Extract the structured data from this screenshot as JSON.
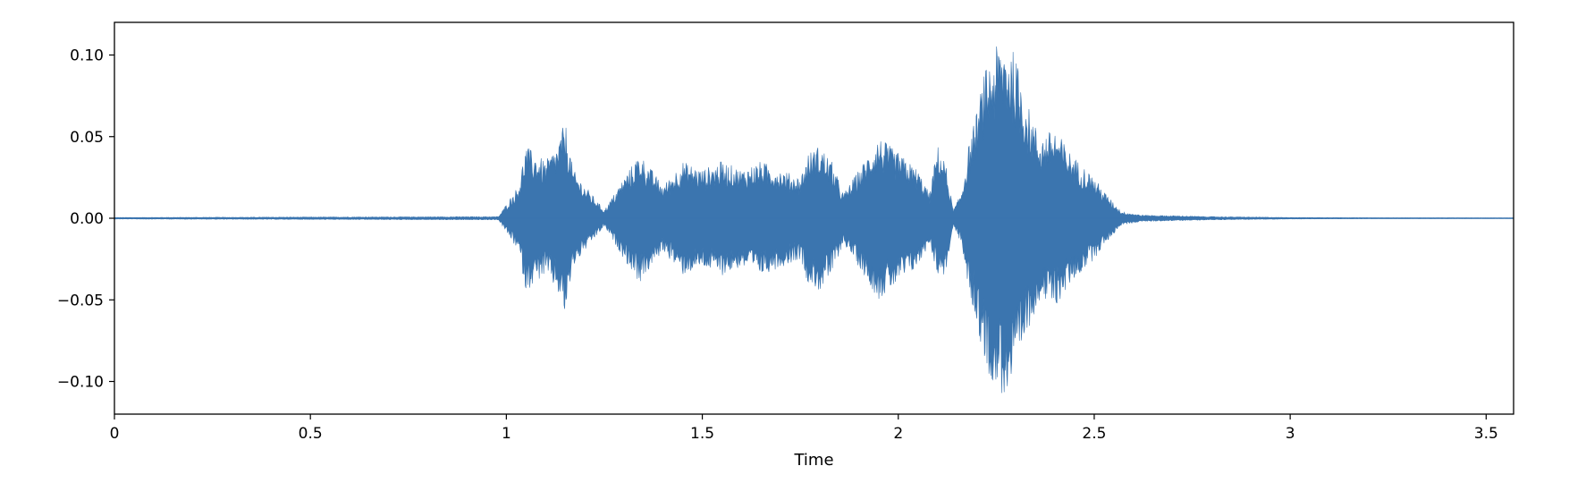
{
  "chart_data": {
    "type": "area",
    "title": "",
    "xlabel": "Time",
    "ylabel": "",
    "xlim": [
      0,
      3.57
    ],
    "ylim": [
      -0.12,
      0.12
    ],
    "x_ticks": [
      0,
      0.5,
      1,
      1.5,
      2,
      2.5,
      3,
      3.5
    ],
    "x_tick_labels": [
      "0",
      "0.5",
      "1",
      "1.5",
      "2",
      "2.5",
      "3",
      "3.5"
    ],
    "y_ticks": [
      0.1,
      0.05,
      0.0,
      -0.05,
      -0.1
    ],
    "y_tick_labels": [
      "0.10",
      "0.05",
      "0.00",
      "−0.05",
      "−0.10"
    ],
    "grid": false,
    "legend": "none",
    "colors": {
      "waveform": "#3b75af",
      "axes": "#000000",
      "background": "#ffffff"
    },
    "series": [
      {
        "envelope": {
          "x": [
            0,
            0.98,
            1.03,
            1.035,
            1.05,
            1.07,
            1.1,
            1.13,
            1.15,
            1.17,
            1.2,
            1.25,
            1.3,
            1.34,
            1.37,
            1.4,
            1.45,
            1.5,
            1.55,
            1.6,
            1.65,
            1.7,
            1.75,
            1.77,
            1.8,
            1.83,
            1.86,
            1.9,
            1.95,
            2.0,
            2.05,
            2.08,
            2.1,
            2.12,
            2.14,
            2.16,
            2.18,
            2.2,
            2.22,
            2.25,
            2.27,
            2.29,
            2.31,
            2.33,
            2.36,
            2.4,
            2.44,
            2.48,
            2.5,
            2.53,
            2.57,
            2.62,
            2.8,
            3.0,
            3.2,
            3.57
          ],
          "upper": [
            0.0005,
            0.001,
            0.02,
            0.025,
            0.045,
            0.04,
            0.035,
            0.045,
            0.06,
            0.03,
            0.02,
            0.005,
            0.025,
            0.04,
            0.03,
            0.02,
            0.035,
            0.03,
            0.035,
            0.03,
            0.035,
            0.03,
            0.025,
            0.04,
            0.045,
            0.035,
            0.015,
            0.03,
            0.05,
            0.04,
            0.03,
            0.015,
            0.045,
            0.035,
            0.005,
            0.015,
            0.045,
            0.065,
            0.09,
            0.105,
            0.11,
            0.105,
            0.09,
            0.07,
            0.05,
            0.055,
            0.04,
            0.03,
            0.025,
            0.015,
            0.004,
            0.002,
            0.001,
            0.0005,
            0.0003,
            0.0002
          ],
          "lower": [
            -0.0005,
            -0.001,
            -0.02,
            -0.025,
            -0.045,
            -0.04,
            -0.035,
            -0.045,
            -0.06,
            -0.03,
            -0.02,
            -0.005,
            -0.025,
            -0.04,
            -0.03,
            -0.02,
            -0.035,
            -0.03,
            -0.035,
            -0.03,
            -0.035,
            -0.03,
            -0.025,
            -0.04,
            -0.045,
            -0.035,
            -0.015,
            -0.03,
            -0.05,
            -0.04,
            -0.03,
            -0.015,
            -0.035,
            -0.035,
            -0.005,
            -0.015,
            -0.045,
            -0.065,
            -0.09,
            -0.105,
            -0.11,
            -0.105,
            -0.09,
            -0.07,
            -0.05,
            -0.055,
            -0.04,
            -0.03,
            -0.025,
            -0.015,
            -0.004,
            -0.002,
            -0.001,
            -0.0005,
            -0.0003,
            -0.0002
          ]
        }
      }
    ]
  }
}
